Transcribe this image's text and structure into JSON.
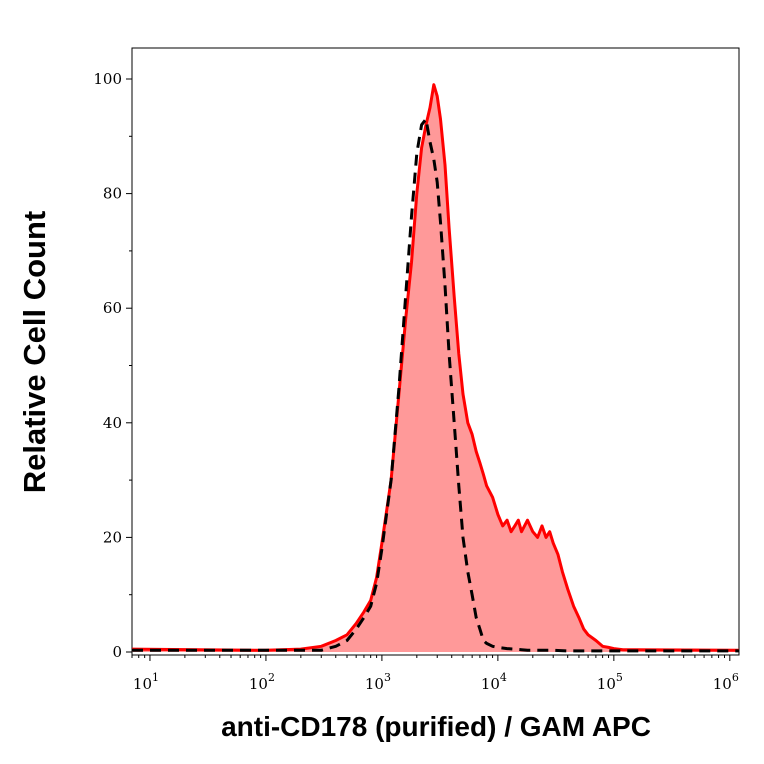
{
  "chart_data": {
    "type": "area",
    "title": "",
    "xlabel": "anti-CD178 (purified) / GAM APC",
    "ylabel": "Relative Cell Count",
    "x_scale": "log",
    "xlim": [
      7,
      1200000
    ],
    "ylim": [
      0,
      100
    ],
    "grid": false,
    "x_ticks": [
      {
        "value": 10,
        "base": "10",
        "exp": "1"
      },
      {
        "value": 100,
        "base": "10",
        "exp": "2"
      },
      {
        "value": 1000,
        "base": "10",
        "exp": "3"
      },
      {
        "value": 10000,
        "base": "10",
        "exp": "4"
      },
      {
        "value": 100000,
        "base": "10",
        "exp": "5"
      },
      {
        "value": 1000000,
        "base": "10",
        "exp": "6"
      }
    ],
    "y_ticks": [
      {
        "value": 0,
        "label": "0"
      },
      {
        "value": 20,
        "label": "20"
      },
      {
        "value": 40,
        "label": "40"
      },
      {
        "value": 60,
        "label": "60"
      },
      {
        "value": 80,
        "label": "80"
      },
      {
        "value": 100,
        "label": "100"
      }
    ],
    "series": [
      {
        "style": "filled",
        "color": "#ff0000",
        "fill": "#ff9999",
        "x": [
          7,
          100,
          200,
          300,
          400,
          500,
          600,
          700,
          800,
          900,
          1000,
          1200,
          1400,
          1600,
          1800,
          2000,
          2200,
          2400,
          2600,
          2800,
          3000,
          3200,
          3500,
          3800,
          4200,
          4600,
          5000,
          5500,
          6000,
          6500,
          7000,
          7500,
          8000,
          9000,
          10000,
          11000,
          12000,
          13000,
          14000,
          15000,
          16000,
          18000,
          20000,
          22000,
          24000,
          26000,
          28000,
          30000,
          33000,
          36000,
          40000,
          45000,
          50000,
          55000,
          60000,
          70000,
          80000,
          90000,
          100000,
          120000,
          1200000
        ],
        "y": [
          0.5,
          0.3,
          0.5,
          1,
          2,
          3,
          5,
          7,
          9,
          13,
          19,
          30,
          45,
          58,
          68,
          80,
          88,
          92,
          95,
          99,
          97,
          93,
          85,
          74,
          62,
          52,
          45,
          40,
          38,
          35,
          33,
          31,
          29,
          27,
          24,
          22,
          23,
          21,
          22,
          23,
          21,
          23,
          21,
          20,
          22,
          20,
          21,
          19,
          17,
          14,
          11,
          8,
          6,
          4,
          3,
          2,
          1,
          0.8,
          0.6,
          0.4,
          0.3
        ]
      },
      {
        "style": "dashed",
        "color": "#000000",
        "x": [
          7,
          300,
          400,
          500,
          600,
          700,
          800,
          900,
          1000,
          1200,
          1400,
          1600,
          1800,
          2000,
          2200,
          2400,
          2600,
          2800,
          3000,
          3200,
          3500,
          3800,
          4200,
          4600,
          5000,
          5500,
          6000,
          6500,
          7000,
          7500,
          8000,
          9000,
          10000,
          12000,
          14000,
          16000,
          18000,
          20000,
          25000,
          30000,
          40000,
          1200000
        ],
        "y": [
          0.3,
          0.3,
          1,
          2,
          4,
          6,
          8,
          12,
          18,
          30,
          46,
          62,
          76,
          87,
          92,
          93,
          89,
          86,
          82,
          75,
          64,
          52,
          40,
          29,
          20,
          14,
          10,
          6,
          4,
          2,
          1.5,
          1,
          0.8,
          0.6,
          0.5,
          0.4,
          0.3,
          0.3,
          0.3,
          0.3,
          0.2,
          0.2
        ]
      }
    ]
  }
}
